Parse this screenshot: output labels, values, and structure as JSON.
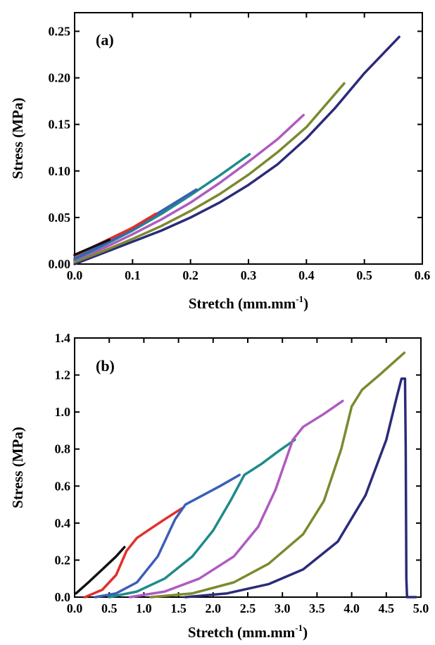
{
  "chart_data": [
    {
      "type": "line",
      "panel_label": "(a)",
      "xlabel_main": "Stretch (mm.mm",
      "xlabel_sup": "-1",
      "xlabel_tail": ")",
      "ylabel": "Stress (MPa)",
      "xlim": [
        0,
        0.6
      ],
      "ylim": [
        0,
        0.27
      ],
      "xticks": [
        0,
        0.1,
        0.2,
        0.3,
        0.4,
        0.5,
        0.6
      ],
      "xtick_labels": [
        "0.0",
        "0.1",
        "0.2",
        "0.3",
        "0.4",
        "0.5",
        "0.6"
      ],
      "yticks": [
        0,
        0.05,
        0.1,
        0.15,
        0.2,
        0.25
      ],
      "ytick_labels": [
        "0.00",
        "0.05",
        "0.10",
        "0.15",
        "0.20",
        "0.25"
      ],
      "series": [
        {
          "color": "#2b2b7a",
          "points": [
            [
              0,
              0
            ],
            [
              0.05,
              0.012
            ],
            [
              0.1,
              0.024
            ],
            [
              0.15,
              0.036
            ],
            [
              0.2,
              0.05
            ],
            [
              0.25,
              0.066
            ],
            [
              0.3,
              0.085
            ],
            [
              0.35,
              0.107
            ],
            [
              0.4,
              0.135
            ],
            [
              0.45,
              0.168
            ],
            [
              0.5,
              0.205
            ],
            [
              0.56,
              0.244
            ]
          ]
        },
        {
          "color": "#7a8a2e",
          "points": [
            [
              0,
              0.002
            ],
            [
              0.05,
              0.014
            ],
            [
              0.1,
              0.027
            ],
            [
              0.15,
              0.041
            ],
            [
              0.2,
              0.057
            ],
            [
              0.25,
              0.075
            ],
            [
              0.3,
              0.096
            ],
            [
              0.35,
              0.12
            ],
            [
              0.4,
              0.147
            ],
            [
              0.465,
              0.194
            ]
          ]
        },
        {
          "color": "#b05ac0",
          "points": [
            [
              0,
              0.004
            ],
            [
              0.05,
              0.017
            ],
            [
              0.1,
              0.032
            ],
            [
              0.15,
              0.048
            ],
            [
              0.2,
              0.066
            ],
            [
              0.25,
              0.087
            ],
            [
              0.3,
              0.11
            ],
            [
              0.35,
              0.134
            ],
            [
              0.395,
              0.16
            ]
          ]
        },
        {
          "color": "#1f8a8a",
          "points": [
            [
              0,
              0.005
            ],
            [
              0.05,
              0.02
            ],
            [
              0.1,
              0.036
            ],
            [
              0.15,
              0.054
            ],
            [
              0.2,
              0.074
            ],
            [
              0.25,
              0.095
            ],
            [
              0.302,
              0.118
            ]
          ]
        },
        {
          "color": "#3b5fb8",
          "points": [
            [
              0,
              0.006
            ],
            [
              0.05,
              0.021
            ],
            [
              0.1,
              0.038
            ],
            [
              0.15,
              0.057
            ],
            [
              0.21,
              0.08
            ]
          ]
        },
        {
          "color": "#e0302a",
          "points": [
            [
              0,
              0.009
            ],
            [
              0.05,
              0.024
            ],
            [
              0.1,
              0.039
            ],
            [
              0.14,
              0.054
            ]
          ]
        },
        {
          "color": "#111111",
          "points": [
            [
              0,
              0.01
            ],
            [
              0.03,
              0.018
            ],
            [
              0.06,
              0.026
            ]
          ]
        }
      ]
    },
    {
      "type": "line",
      "panel_label": "(b)",
      "xlabel_main": "Stretch (mm.mm",
      "xlabel_sup": "-1",
      "xlabel_tail": ")",
      "ylabel": "Stress (MPa)",
      "xlim": [
        0,
        5.0
      ],
      "ylim": [
        0,
        1.4
      ],
      "xticks": [
        0,
        0.5,
        1.0,
        1.5,
        2.0,
        2.5,
        3.0,
        3.5,
        4.0,
        4.5,
        5.0
      ],
      "xtick_labels": [
        "0.0",
        "0.5",
        "1.0",
        "1.5",
        "2.0",
        "2.5",
        "3.0",
        "3.5",
        "4.0",
        "4.5",
        "5.0"
      ],
      "yticks": [
        0,
        0.2,
        0.4,
        0.6,
        0.8,
        1.0,
        1.2,
        1.4
      ],
      "ytick_labels": [
        "0.0",
        "0.2",
        "0.4",
        "0.6",
        "0.8",
        "1.0",
        "1.2",
        "1.4"
      ],
      "series": [
        {
          "color": "#111111",
          "points": [
            [
              0.02,
              0.02
            ],
            [
              0.2,
              0.08
            ],
            [
              0.4,
              0.15
            ],
            [
              0.6,
              0.22
            ],
            [
              0.72,
              0.27
            ]
          ]
        },
        {
          "color": "#e0302a",
          "points": [
            [
              0.15,
              0
            ],
            [
              0.4,
              0.04
            ],
            [
              0.6,
              0.12
            ],
            [
              0.75,
              0.25
            ],
            [
              0.9,
              0.32
            ],
            [
              1.1,
              0.37
            ],
            [
              1.3,
              0.42
            ],
            [
              1.55,
              0.48
            ]
          ]
        },
        {
          "color": "#3b5fb8",
          "points": [
            [
              0.3,
              0
            ],
            [
              0.6,
              0.02
            ],
            [
              0.9,
              0.08
            ],
            [
              1.2,
              0.22
            ],
            [
              1.45,
              0.42
            ],
            [
              1.6,
              0.5
            ],
            [
              1.8,
              0.54
            ],
            [
              2.1,
              0.6
            ],
            [
              2.38,
              0.66
            ]
          ]
        },
        {
          "color": "#1f8a8a",
          "points": [
            [
              0.5,
              0
            ],
            [
              0.9,
              0.03
            ],
            [
              1.3,
              0.1
            ],
            [
              1.7,
              0.22
            ],
            [
              2.0,
              0.36
            ],
            [
              2.25,
              0.52
            ],
            [
              2.45,
              0.66
            ],
            [
              2.7,
              0.72
            ],
            [
              2.95,
              0.79
            ],
            [
              3.18,
              0.85
            ]
          ]
        },
        {
          "color": "#b05ac0",
          "points": [
            [
              0.8,
              0
            ],
            [
              1.3,
              0.03
            ],
            [
              1.8,
              0.1
            ],
            [
              2.3,
              0.22
            ],
            [
              2.65,
              0.38
            ],
            [
              2.9,
              0.58
            ],
            [
              3.15,
              0.85
            ],
            [
              3.3,
              0.92
            ],
            [
              3.6,
              0.99
            ],
            [
              3.87,
              1.06
            ]
          ]
        },
        {
          "color": "#7a8a2e",
          "points": [
            [
              1.1,
              0
            ],
            [
              1.7,
              0.02
            ],
            [
              2.3,
              0.08
            ],
            [
              2.8,
              0.18
            ],
            [
              3.3,
              0.34
            ],
            [
              3.6,
              0.52
            ],
            [
              3.85,
              0.8
            ],
            [
              4.0,
              1.03
            ],
            [
              4.15,
              1.12
            ],
            [
              4.4,
              1.2
            ],
            [
              4.76,
              1.32
            ]
          ]
        },
        {
          "color": "#2b2b7a",
          "points": [
            [
              1.6,
              0
            ],
            [
              2.2,
              0.02
            ],
            [
              2.8,
              0.07
            ],
            [
              3.3,
              0.15
            ],
            [
              3.8,
              0.3
            ],
            [
              4.2,
              0.55
            ],
            [
              4.5,
              0.85
            ],
            [
              4.65,
              1.08
            ],
            [
              4.72,
              1.18
            ],
            [
              4.77,
              1.18
            ],
            [
              4.78,
              0.8
            ],
            [
              4.79,
              0.1
            ],
            [
              4.8,
              0
            ],
            [
              4.93,
              0
            ]
          ]
        }
      ]
    }
  ]
}
